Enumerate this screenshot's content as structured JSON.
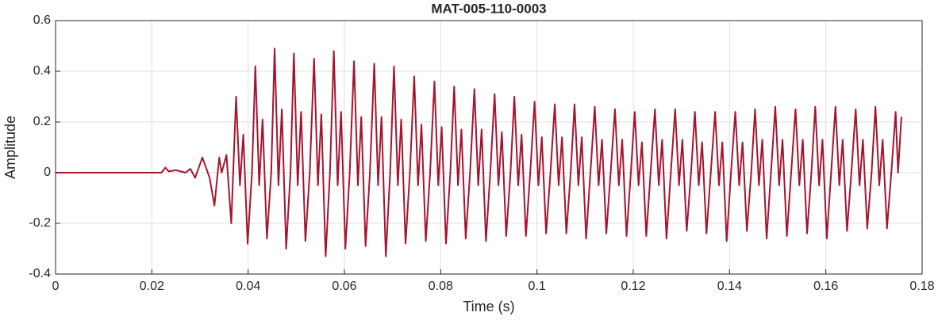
{
  "chart_data": {
    "type": "line",
    "title": "MAT-005-110-0003",
    "x_label": "Time (s)",
    "y_label": "Amplitude",
    "xlim": [
      0,
      0.18
    ],
    "xticks": [
      0,
      0.02,
      0.04,
      0.06,
      0.08,
      0.1,
      0.12,
      0.14,
      0.16,
      0.18
    ],
    "ylim": [
      -0.4,
      0.6
    ],
    "yticks": [
      -0.4,
      -0.2,
      0,
      0.2,
      0.4,
      0.6
    ],
    "grid": true,
    "series": [
      {
        "color": "#a6142f",
        "x": [
          0,
          0.02,
          0.022,
          0.0228,
          0.0235,
          0.025,
          0.027,
          0.028,
          0.029,
          0.0305,
          0.032,
          0.033,
          0.034,
          0.0345,
          0.0355,
          0.0365,
          0.0375,
          0.0383,
          0.039,
          0.0399,
          0.0408,
          0.0415,
          0.0423,
          0.043,
          0.0439,
          0.0448,
          0.0455,
          0.0463,
          0.047,
          0.0479,
          0.0488,
          0.0495,
          0.0503,
          0.051,
          0.0519,
          0.0528,
          0.0537,
          0.0545,
          0.0552,
          0.0561,
          0.057,
          0.0578,
          0.0586,
          0.0593,
          0.0602,
          0.0611,
          0.062,
          0.0628,
          0.0635,
          0.0644,
          0.0653,
          0.0662,
          0.067,
          0.0677,
          0.0686,
          0.0695,
          0.0703,
          0.0711,
          0.0718,
          0.0727,
          0.0736,
          0.0745,
          0.0753,
          0.076,
          0.0769,
          0.0778,
          0.0787,
          0.0795,
          0.0802,
          0.0811,
          0.082,
          0.0828,
          0.0836,
          0.0843,
          0.0852,
          0.0861,
          0.087,
          0.0878,
          0.0885,
          0.0894,
          0.0903,
          0.0912,
          0.092,
          0.0927,
          0.0936,
          0.0945,
          0.0953,
          0.0961,
          0.0968,
          0.0977,
          0.0986,
          0.0995,
          0.1003,
          0.101,
          0.1019,
          0.1028,
          0.1037,
          0.1045,
          0.1052,
          0.1061,
          0.107,
          0.1078,
          0.1086,
          0.1093,
          0.1102,
          0.1111,
          0.112,
          0.1128,
          0.1135,
          0.1144,
          0.1153,
          0.1162,
          0.117,
          0.1177,
          0.1186,
          0.1195,
          0.1203,
          0.1211,
          0.1218,
          0.1227,
          0.1236,
          0.1245,
          0.1253,
          0.126,
          0.1269,
          0.1278,
          0.1287,
          0.1295,
          0.1302,
          0.1311,
          0.132,
          0.1328,
          0.1336,
          0.1343,
          0.1352,
          0.1361,
          0.137,
          0.1378,
          0.1385,
          0.1394,
          0.1403,
          0.1412,
          0.142,
          0.1427,
          0.1436,
          0.1445,
          0.1453,
          0.1461,
          0.1468,
          0.1477,
          0.1486,
          0.1495,
          0.1503,
          0.151,
          0.1519,
          0.1528,
          0.1537,
          0.1545,
          0.1552,
          0.1561,
          0.157,
          0.1578,
          0.1586,
          0.1593,
          0.1602,
          0.1611,
          0.162,
          0.1628,
          0.1635,
          0.1644,
          0.1653,
          0.1662,
          0.167,
          0.1677,
          0.1686,
          0.1695,
          0.1703,
          0.1711,
          0.1718,
          0.1727,
          0.1736,
          0.1745,
          0.175,
          0.1757
        ],
        "values": [
          0,
          0,
          0,
          0.02,
          0.005,
          0.01,
          0,
          0.015,
          -0.02,
          0.06,
          -0.02,
          -0.13,
          0.06,
          0,
          0.07,
          -0.2,
          0.3,
          -0.05,
          0.15,
          -0.28,
          0,
          0.42,
          -0.05,
          0.21,
          -0.26,
          0,
          0.49,
          -0.05,
          0.25,
          -0.3,
          0,
          0.47,
          -0.05,
          0.24,
          -0.27,
          0,
          0.45,
          -0.05,
          0.23,
          -0.33,
          0,
          0.48,
          -0.05,
          0.24,
          -0.3,
          0,
          0.44,
          -0.05,
          0.22,
          -0.29,
          0,
          0.43,
          -0.05,
          0.22,
          -0.33,
          0,
          0.42,
          -0.05,
          0.21,
          -0.28,
          0,
          0.38,
          -0.05,
          0.19,
          -0.27,
          0,
          0.36,
          -0.05,
          0.18,
          -0.28,
          0,
          0.34,
          -0.05,
          0.17,
          -0.26,
          0,
          0.33,
          -0.05,
          0.17,
          -0.27,
          0,
          0.31,
          -0.05,
          0.16,
          -0.25,
          0,
          0.3,
          -0.05,
          0.15,
          -0.25,
          0,
          0.28,
          -0.05,
          0.14,
          -0.24,
          0,
          0.27,
          -0.05,
          0.14,
          -0.24,
          0,
          0.27,
          -0.05,
          0.14,
          -0.26,
          0,
          0.26,
          -0.05,
          0.13,
          -0.24,
          0,
          0.25,
          -0.05,
          0.13,
          -0.25,
          0,
          0.24,
          -0.05,
          0.12,
          -0.25,
          0,
          0.25,
          -0.05,
          0.13,
          -0.26,
          0,
          0.25,
          -0.05,
          0.13,
          -0.23,
          0,
          0.24,
          -0.05,
          0.12,
          -0.24,
          0,
          0.24,
          -0.05,
          0.12,
          -0.27,
          0,
          0.24,
          -0.05,
          0.12,
          -0.23,
          0,
          0.25,
          -0.05,
          0.13,
          -0.26,
          0,
          0.26,
          -0.05,
          0.13,
          -0.25,
          0,
          0.25,
          -0.05,
          0.13,
          -0.24,
          0,
          0.26,
          -0.05,
          0.13,
          -0.26,
          0,
          0.26,
          -0.05,
          0.13,
          -0.23,
          0,
          0.25,
          -0.05,
          0.13,
          -0.22,
          0,
          0.26,
          -0.05,
          0.13,
          -0.22,
          0,
          0.24,
          0,
          0.22
        ]
      }
    ]
  }
}
